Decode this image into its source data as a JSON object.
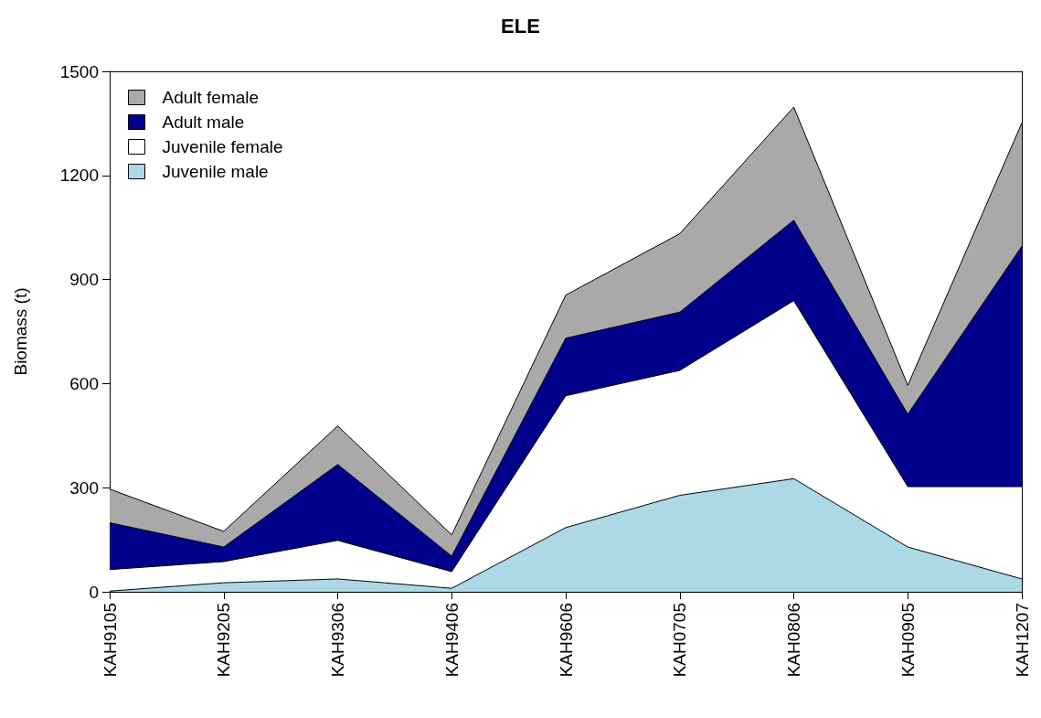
{
  "chart_data": {
    "type": "area",
    "title": "ELE",
    "ylabel": "Biomass (t)",
    "stacked": true,
    "legend": "top left",
    "grid": false,
    "categories": [
      "KAH9105",
      "KAH9205",
      "KAH9306",
      "KAH9406",
      "KAH9606",
      "KAH0705",
      "KAH0806",
      "KAH0905",
      "KAH1207"
    ],
    "ylim": [
      0,
      1500
    ],
    "yticks": [
      0,
      300,
      600,
      900,
      1200,
      1500
    ],
    "series": [
      {
        "name": "Juvenile male",
        "color": "#add8e6",
        "values": [
          2,
          26,
          37,
          10,
          185,
          278,
          326,
          129,
          37
        ]
      },
      {
        "name": "Juvenile female",
        "color": "#ffffff",
        "values": [
          62,
          61,
          111,
          48,
          380,
          360,
          513,
          174,
          266
        ]
      },
      {
        "name": "Adult male",
        "color": "#00008b",
        "values": [
          135,
          42,
          219,
          45,
          166,
          168,
          232,
          209,
          693
        ]
      },
      {
        "name": "Adult female",
        "color": "#a9a9a9",
        "values": [
          97,
          45,
          111,
          61,
          124,
          226,
          326,
          83,
          355
        ]
      }
    ]
  }
}
